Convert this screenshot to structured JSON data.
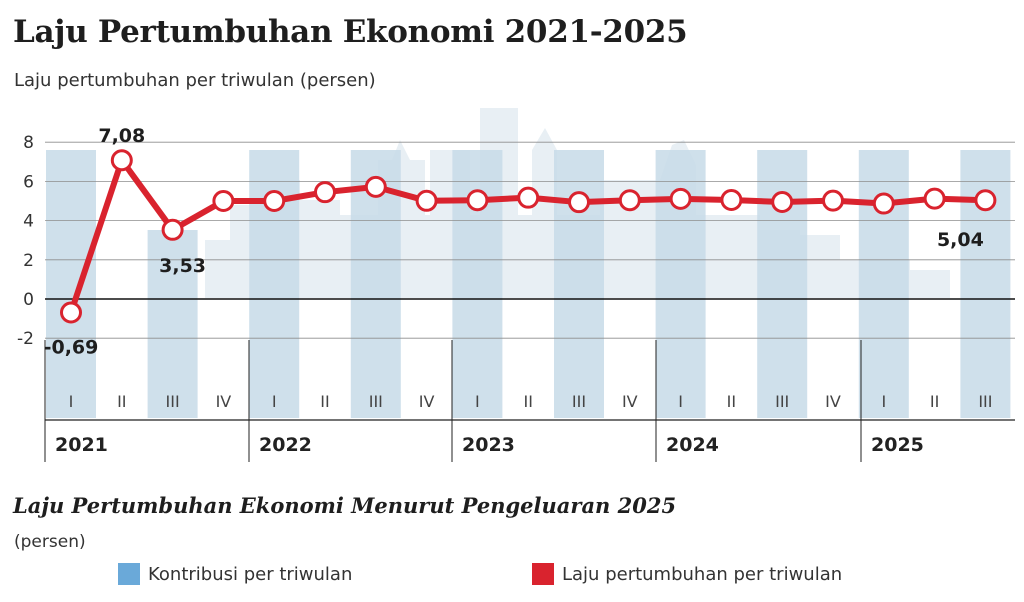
{
  "title": "Laju Pertumbuhan Ekonomi 2021-2025",
  "subtitle": "Laju pertumbuhan per triwulan (persen)",
  "subtitle2": "Laju Pertumbuhan Ekonomi Menurut Pengeluaran 2025",
  "unit": "(persen)",
  "legend": [
    {
      "label": "Kontribusi per triwulan",
      "color": "#5b9bd1"
    },
    {
      "label": "Laju pertumbuhan per triwulan",
      "color": "#d9232e"
    }
  ],
  "chart_data": {
    "type": "line",
    "ylim": [
      -2,
      8
    ],
    "yticks": [
      "8",
      "6",
      "4",
      "2",
      "0",
      "-2"
    ],
    "quarters": [
      "I",
      "II",
      "III",
      "IV",
      "I",
      "II",
      "III",
      "IV",
      "I",
      "II",
      "III",
      "IV",
      "I",
      "II",
      "III",
      "IV",
      "I",
      "II",
      "III"
    ],
    "years": [
      "2021",
      "2022",
      "2023",
      "2024",
      "2025"
    ],
    "series": [
      {
        "name": "Laju pertumbuhan per triwulan",
        "color": "#d9232e",
        "values": [
          -0.69,
          7.08,
          3.53,
          5.0,
          5.0,
          5.45,
          5.72,
          5.01,
          5.04,
          5.17,
          4.94,
          5.04,
          5.11,
          5.05,
          4.95,
          5.02,
          4.87,
          5.12,
          5.04
        ]
      }
    ],
    "data_labels": [
      {
        "index": 0,
        "text": "-0,69"
      },
      {
        "index": 1,
        "text": "7,08"
      },
      {
        "index": 2,
        "text": "3,53"
      },
      {
        "index": 18,
        "text": "5,04"
      }
    ],
    "bar_color": "#c7dbe7",
    "grid": true
  }
}
